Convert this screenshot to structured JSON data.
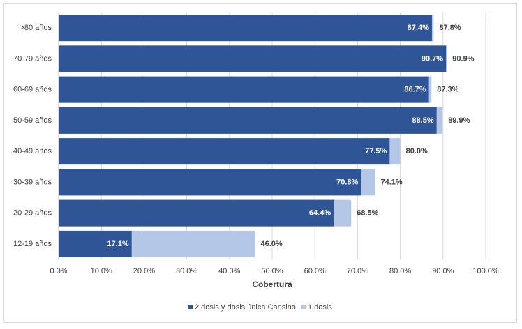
{
  "chart_data": {
    "type": "bar",
    "orientation": "horizontal",
    "stacked": "overlay",
    "categories": [
      ">80 años",
      "70-79 años",
      "60-69 años",
      "50-59 años",
      "40-49 años",
      "30-39 años",
      "20-29 años",
      "12-19  años"
    ],
    "series": [
      {
        "name": "2 dosis y dosis única Cansino",
        "color": "#2f5597",
        "values": [
          87.4,
          90.7,
          86.7,
          88.5,
          77.5,
          70.8,
          64.4,
          17.1
        ],
        "labels": [
          "87.4%",
          "90.7%",
          "86.7%",
          "88.5%",
          "77.5%",
          "70.8%",
          "64.4%",
          "17.1%"
        ]
      },
      {
        "name": "1 dosis",
        "color": "#b4c7e7",
        "values": [
          87.8,
          90.9,
          87.3,
          89.9,
          80.0,
          74.1,
          68.5,
          46.0
        ],
        "labels": [
          "87.8%",
          "90.9%",
          "87.3%",
          "89.9%",
          "80.0%",
          "74.1%",
          "68.5%",
          "46.0%"
        ]
      }
    ],
    "xlabel": "Cobertura",
    "ylabel": "",
    "xlim": [
      0,
      100
    ],
    "xticks": [
      0,
      10,
      20,
      30,
      40,
      50,
      60,
      70,
      80,
      90,
      100
    ],
    "xtick_labels": [
      "0.0%",
      "10.0%",
      "20.0%",
      "30.0%",
      "40.0%",
      "50.0%",
      "60.0%",
      "70.0%",
      "80.0%",
      "90.0%",
      "100.0%"
    ],
    "grid": "vertical",
    "legend": "bottom"
  }
}
